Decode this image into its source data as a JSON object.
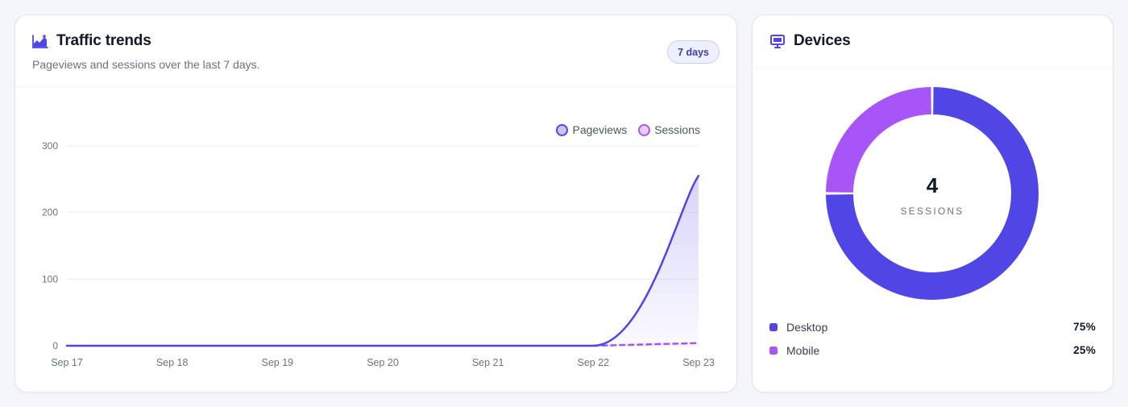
{
  "traffic": {
    "title": "Traffic trends",
    "subtitle": "Pageviews and sessions over the last 7 days.",
    "range_label": "7 days",
    "icon": "chart-trend-icon",
    "chart_data": {
      "type": "line",
      "x": [
        "Sep 17",
        "Sep 18",
        "Sep 19",
        "Sep 20",
        "Sep 21",
        "Sep 22",
        "Sep 23"
      ],
      "yticks": [
        0,
        100,
        200,
        300
      ],
      "ylim": [
        0,
        300
      ],
      "grid": true,
      "legend_position": "top-right",
      "series": [
        {
          "name": "Pageviews",
          "values": [
            0,
            0,
            0,
            0,
            0,
            0,
            255
          ],
          "color": "#4f46e5",
          "style": "solid",
          "fill": true
        },
        {
          "name": "Sessions",
          "values": [
            0,
            0,
            0,
            0,
            0,
            0,
            4
          ],
          "color": "#a855f7",
          "style": "dashed",
          "fill": false
        }
      ]
    }
  },
  "devices": {
    "title": "Devices",
    "icon": "monitor-icon",
    "total_value": "4",
    "total_label": "SESSIONS",
    "items": [
      {
        "name": "Desktop",
        "percent_label": "75%",
        "percent": 75,
        "color": "#4f46e5"
      },
      {
        "name": "Mobile",
        "percent_label": "25%",
        "percent": 25,
        "color": "#a855f7"
      }
    ]
  }
}
